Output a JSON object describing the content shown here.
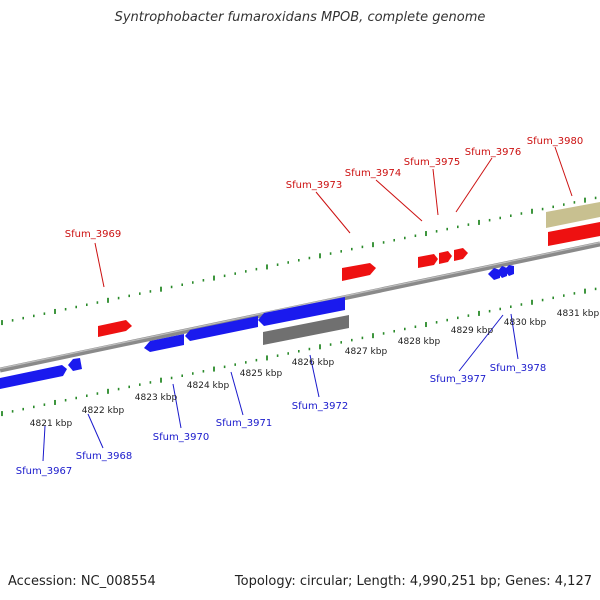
{
  "title": "Syntrophobacter fumaroxidans MPOB, complete genome",
  "footer": {
    "accession": "Accession: NC_008554",
    "summary": "Topology: circular; Length: 4,990,251 bp; Genes: 4,127"
  },
  "colors": {
    "forward_gene": "#ee1111",
    "reverse_gene": "#1a1aee",
    "gray_feature": "#707070",
    "olive_feature": "#c8c090",
    "backbone": "#8a8a8a",
    "tick": "#2a8a2a",
    "forward_label": "#cc1111",
    "reverse_label": "#1a1acc"
  },
  "kbp_labels": [
    "4821 kbp",
    "4822 kbp",
    "4823 kbp",
    "4824 kbp",
    "4825 kbp",
    "4826 kbp",
    "4827 kbp",
    "4828 kbp",
    "4829 kbp",
    "4830 kbp",
    "4831 kbp"
  ],
  "forward_genes": [
    "Sfum_3969",
    "Sfum_3973",
    "Sfum_3974",
    "Sfum_3975",
    "Sfum_3976",
    "Sfum_3980"
  ],
  "reverse_genes": [
    "Sfum_3967",
    "Sfum_3968",
    "Sfum_3970",
    "Sfum_3971",
    "Sfum_3972",
    "Sfum_3977",
    "Sfum_3978"
  ]
}
